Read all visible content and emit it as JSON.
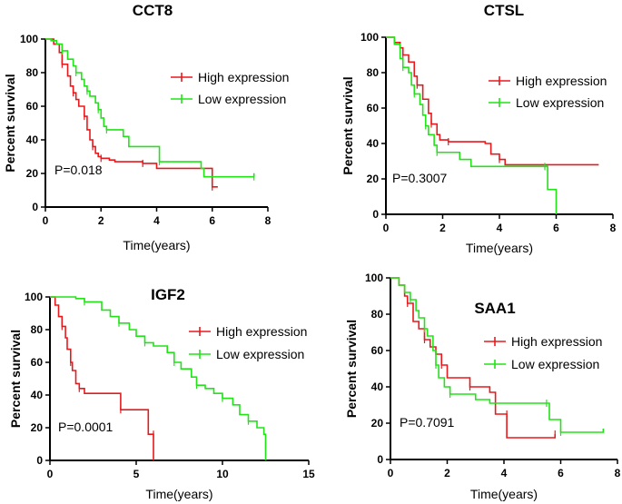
{
  "chart_data": [
    {
      "type": "line",
      "title": "CCT8",
      "xlabel": "Time(years)",
      "ylabel": "Percent survival",
      "xlim": [
        0,
        8
      ],
      "ylim": [
        0,
        100
      ],
      "xticks": [
        0,
        2,
        4,
        6,
        8
      ],
      "yticks": [
        0,
        20,
        40,
        60,
        80,
        100
      ],
      "legend": "right",
      "pvalue": "P=0.018",
      "series": [
        {
          "name": "High expression",
          "color": "#e8191c",
          "points": [
            [
              0,
              100
            ],
            [
              0.3,
              97
            ],
            [
              0.5,
              92
            ],
            [
              0.6,
              85
            ],
            [
              0.8,
              78
            ],
            [
              0.9,
              72
            ],
            [
              1.0,
              68
            ],
            [
              1.1,
              64
            ],
            [
              1.2,
              60
            ],
            [
              1.4,
              54
            ],
            [
              1.5,
              46
            ],
            [
              1.6,
              40
            ],
            [
              1.7,
              36
            ],
            [
              1.8,
              32
            ],
            [
              1.9,
              30
            ],
            [
              2.0,
              29
            ],
            [
              2.3,
              28
            ],
            [
              2.5,
              27
            ],
            [
              3.5,
              26
            ],
            [
              4.0,
              23
            ],
            [
              6.0,
              20
            ],
            [
              6.0,
              12
            ],
            [
              6.2,
              12
            ]
          ]
        },
        {
          "name": "Low expression",
          "color": "#22e318",
          "points": [
            [
              0,
              100
            ],
            [
              0.2,
              99
            ],
            [
              0.4,
              97
            ],
            [
              0.6,
              93
            ],
            [
              0.8,
              88
            ],
            [
              1.0,
              84
            ],
            [
              1.1,
              80
            ],
            [
              1.3,
              76
            ],
            [
              1.4,
              72
            ],
            [
              1.5,
              69
            ],
            [
              1.6,
              66
            ],
            [
              1.8,
              62
            ],
            [
              1.9,
              58
            ],
            [
              2.0,
              53
            ],
            [
              2.1,
              48
            ],
            [
              2.2,
              46
            ],
            [
              2.8,
              42
            ],
            [
              3.0,
              36
            ],
            [
              4.1,
              27
            ],
            [
              5.6,
              23
            ],
            [
              5.7,
              18
            ],
            [
              7.5,
              18
            ],
            [
              7.5,
              20
            ]
          ]
        }
      ]
    },
    {
      "type": "line",
      "title": "CTSL",
      "xlabel": "Time(years)",
      "ylabel": "Percent survival",
      "xlim": [
        0,
        8
      ],
      "ylim": [
        0,
        100
      ],
      "xticks": [
        0,
        2,
        4,
        6,
        8
      ],
      "yticks": [
        0,
        20,
        40,
        60,
        80,
        100
      ],
      "legend": "right",
      "pvalue": "P=0.3007",
      "series": [
        {
          "name": "High expression",
          "color": "#e8191c",
          "points": [
            [
              0,
              100
            ],
            [
              0.3,
              97
            ],
            [
              0.5,
              94
            ],
            [
              0.6,
              90
            ],
            [
              0.8,
              86
            ],
            [
              1.0,
              78
            ],
            [
              1.1,
              73
            ],
            [
              1.3,
              65
            ],
            [
              1.5,
              57
            ],
            [
              1.6,
              51
            ],
            [
              1.8,
              45
            ],
            [
              1.9,
              42
            ],
            [
              2.2,
              41
            ],
            [
              3.5,
              40
            ],
            [
              3.7,
              34
            ],
            [
              4.0,
              31
            ],
            [
              4.2,
              28
            ],
            [
              7.5,
              28
            ]
          ]
        },
        {
          "name": "Low expression",
          "color": "#22e318",
          "points": [
            [
              0,
              100
            ],
            [
              0.3,
              96
            ],
            [
              0.5,
              88
            ],
            [
              0.6,
              83
            ],
            [
              0.8,
              80
            ],
            [
              0.9,
              73
            ],
            [
              1.0,
              68
            ],
            [
              1.2,
              62
            ],
            [
              1.3,
              56
            ],
            [
              1.4,
              50
            ],
            [
              1.5,
              45
            ],
            [
              1.7,
              39
            ],
            [
              1.8,
              35
            ],
            [
              2.6,
              31
            ],
            [
              3.0,
              27
            ],
            [
              5.6,
              27
            ],
            [
              5.7,
              14
            ],
            [
              6.0,
              14
            ],
            [
              6.0,
              0
            ]
          ]
        }
      ]
    },
    {
      "type": "line",
      "title": "IGF2",
      "xlabel": "Time(years)",
      "ylabel": "Percent survival",
      "xlim": [
        0,
        15
      ],
      "ylim": [
        0,
        100
      ],
      "xticks": [
        0,
        5,
        10,
        15
      ],
      "yticks": [
        0,
        20,
        40,
        60,
        80,
        100
      ],
      "legend": "right",
      "pvalue": "P=0.0001",
      "series": [
        {
          "name": "High expression",
          "color": "#e8191c",
          "points": [
            [
              0,
              100
            ],
            [
              0.3,
              95
            ],
            [
              0.5,
              88
            ],
            [
              0.7,
              82
            ],
            [
              0.9,
              75
            ],
            [
              1.0,
              68
            ],
            [
              1.2,
              60
            ],
            [
              1.3,
              55
            ],
            [
              1.5,
              47
            ],
            [
              1.7,
              44
            ],
            [
              2.0,
              41
            ],
            [
              4.0,
              41
            ],
            [
              4.1,
              31
            ],
            [
              5.6,
              31
            ],
            [
              5.7,
              16
            ],
            [
              6.0,
              16
            ],
            [
              6.0,
              0
            ]
          ]
        },
        {
          "name": "Low expression",
          "color": "#22e318",
          "points": [
            [
              0,
              100
            ],
            [
              0.8,
              100
            ],
            [
              1.5,
              99
            ],
            [
              2.0,
              97
            ],
            [
              3.0,
              92
            ],
            [
              3.5,
              88
            ],
            [
              4.0,
              84
            ],
            [
              4.6,
              80
            ],
            [
              5.0,
              76
            ],
            [
              5.5,
              72
            ],
            [
              6.0,
              70
            ],
            [
              6.8,
              66
            ],
            [
              7.2,
              60
            ],
            [
              7.6,
              56
            ],
            [
              8.2,
              51
            ],
            [
              8.5,
              46
            ],
            [
              9.0,
              44
            ],
            [
              9.5,
              41
            ],
            [
              10.0,
              38
            ],
            [
              10.6,
              34
            ],
            [
              11.0,
              28
            ],
            [
              11.5,
              24
            ],
            [
              12.0,
              20
            ],
            [
              12.4,
              16
            ],
            [
              12.5,
              9
            ],
            [
              12.5,
              0
            ]
          ]
        }
      ]
    },
    {
      "type": "line",
      "title": "SAA1",
      "xlabel": "Time(years)",
      "ylabel": "Percent survival",
      "xlim": [
        0,
        8
      ],
      "ylim": [
        0,
        100
      ],
      "xticks": [
        0,
        2,
        4,
        6,
        8
      ],
      "yticks": [
        0,
        20,
        40,
        60,
        80,
        100
      ],
      "legend": "right",
      "pvalue": "P=0.7091",
      "series": [
        {
          "name": "High expression",
          "color": "#e8191c",
          "points": [
            [
              0,
              100
            ],
            [
              0.3,
              96
            ],
            [
              0.5,
              90
            ],
            [
              0.6,
              86
            ],
            [
              0.8,
              76
            ],
            [
              1.0,
              72
            ],
            [
              1.2,
              66
            ],
            [
              1.4,
              62
            ],
            [
              1.6,
              58
            ],
            [
              1.8,
              52
            ],
            [
              2.0,
              45
            ],
            [
              2.6,
              45
            ],
            [
              2.8,
              40
            ],
            [
              3.5,
              37
            ],
            [
              3.7,
              25
            ],
            [
              4.1,
              25
            ],
            [
              4.1,
              12
            ],
            [
              5.8,
              12
            ],
            [
              5.8,
              14
            ]
          ]
        },
        {
          "name": "Low expression",
          "color": "#22e318",
          "points": [
            [
              0,
              100
            ],
            [
              0.3,
              96
            ],
            [
              0.5,
              92
            ],
            [
              0.7,
              88
            ],
            [
              0.9,
              82
            ],
            [
              1.0,
              78
            ],
            [
              1.2,
              72
            ],
            [
              1.3,
              68
            ],
            [
              1.5,
              60
            ],
            [
              1.6,
              52
            ],
            [
              1.7,
              45
            ],
            [
              1.9,
              40
            ],
            [
              2.1,
              36
            ],
            [
              3.0,
              33
            ],
            [
              3.5,
              31
            ],
            [
              5.5,
              31
            ],
            [
              5.6,
              22
            ],
            [
              6.0,
              22
            ],
            [
              6.0,
              15
            ],
            [
              7.5,
              15
            ],
            [
              7.5,
              17
            ]
          ]
        }
      ]
    }
  ]
}
